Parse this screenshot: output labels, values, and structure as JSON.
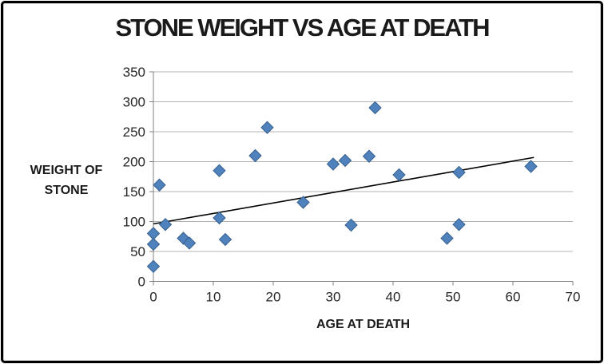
{
  "chart_data": {
    "type": "scatter",
    "title": "STONE WEIGHT VS AGE AT DEATH",
    "xlabel": "AGE AT DEATH",
    "ylabel_line1": "WEIGHT OF",
    "ylabel_line2": "STONE",
    "xlim": [
      0,
      70
    ],
    "ylim": [
      0,
      350
    ],
    "x_ticks": [
      0,
      10,
      20,
      30,
      40,
      50,
      60,
      70
    ],
    "y_ticks": [
      0,
      50,
      100,
      150,
      200,
      250,
      300,
      350
    ],
    "grid": "horizontal-only",
    "legend_position": "none",
    "series": [
      {
        "name": "stone weight vs age at death",
        "marker": "diamond",
        "points": [
          [
            0,
            80
          ],
          [
            0,
            62
          ],
          [
            0,
            25
          ],
          [
            1,
            161
          ],
          [
            2,
            95
          ],
          [
            5,
            72
          ],
          [
            6,
            64
          ],
          [
            11,
            106
          ],
          [
            11,
            185
          ],
          [
            12,
            70
          ],
          [
            17,
            210
          ],
          [
            19,
            257
          ],
          [
            25,
            132
          ],
          [
            30,
            196
          ],
          [
            32,
            202
          ],
          [
            33,
            94
          ],
          [
            36,
            209
          ],
          [
            37,
            290
          ],
          [
            41,
            178
          ],
          [
            49,
            72
          ],
          [
            51,
            95
          ],
          [
            51,
            182
          ],
          [
            63,
            192
          ]
        ]
      }
    ],
    "trendline": {
      "x1": 0,
      "y1": 96,
      "x2": 63.5,
      "y2": 207
    }
  },
  "colors": {
    "marker_fill": "#4f81bd",
    "marker_border": "#38618f",
    "gridline": "#b3b3b3",
    "axis": "#808080",
    "trendline": "#000000",
    "text": "#262626"
  }
}
